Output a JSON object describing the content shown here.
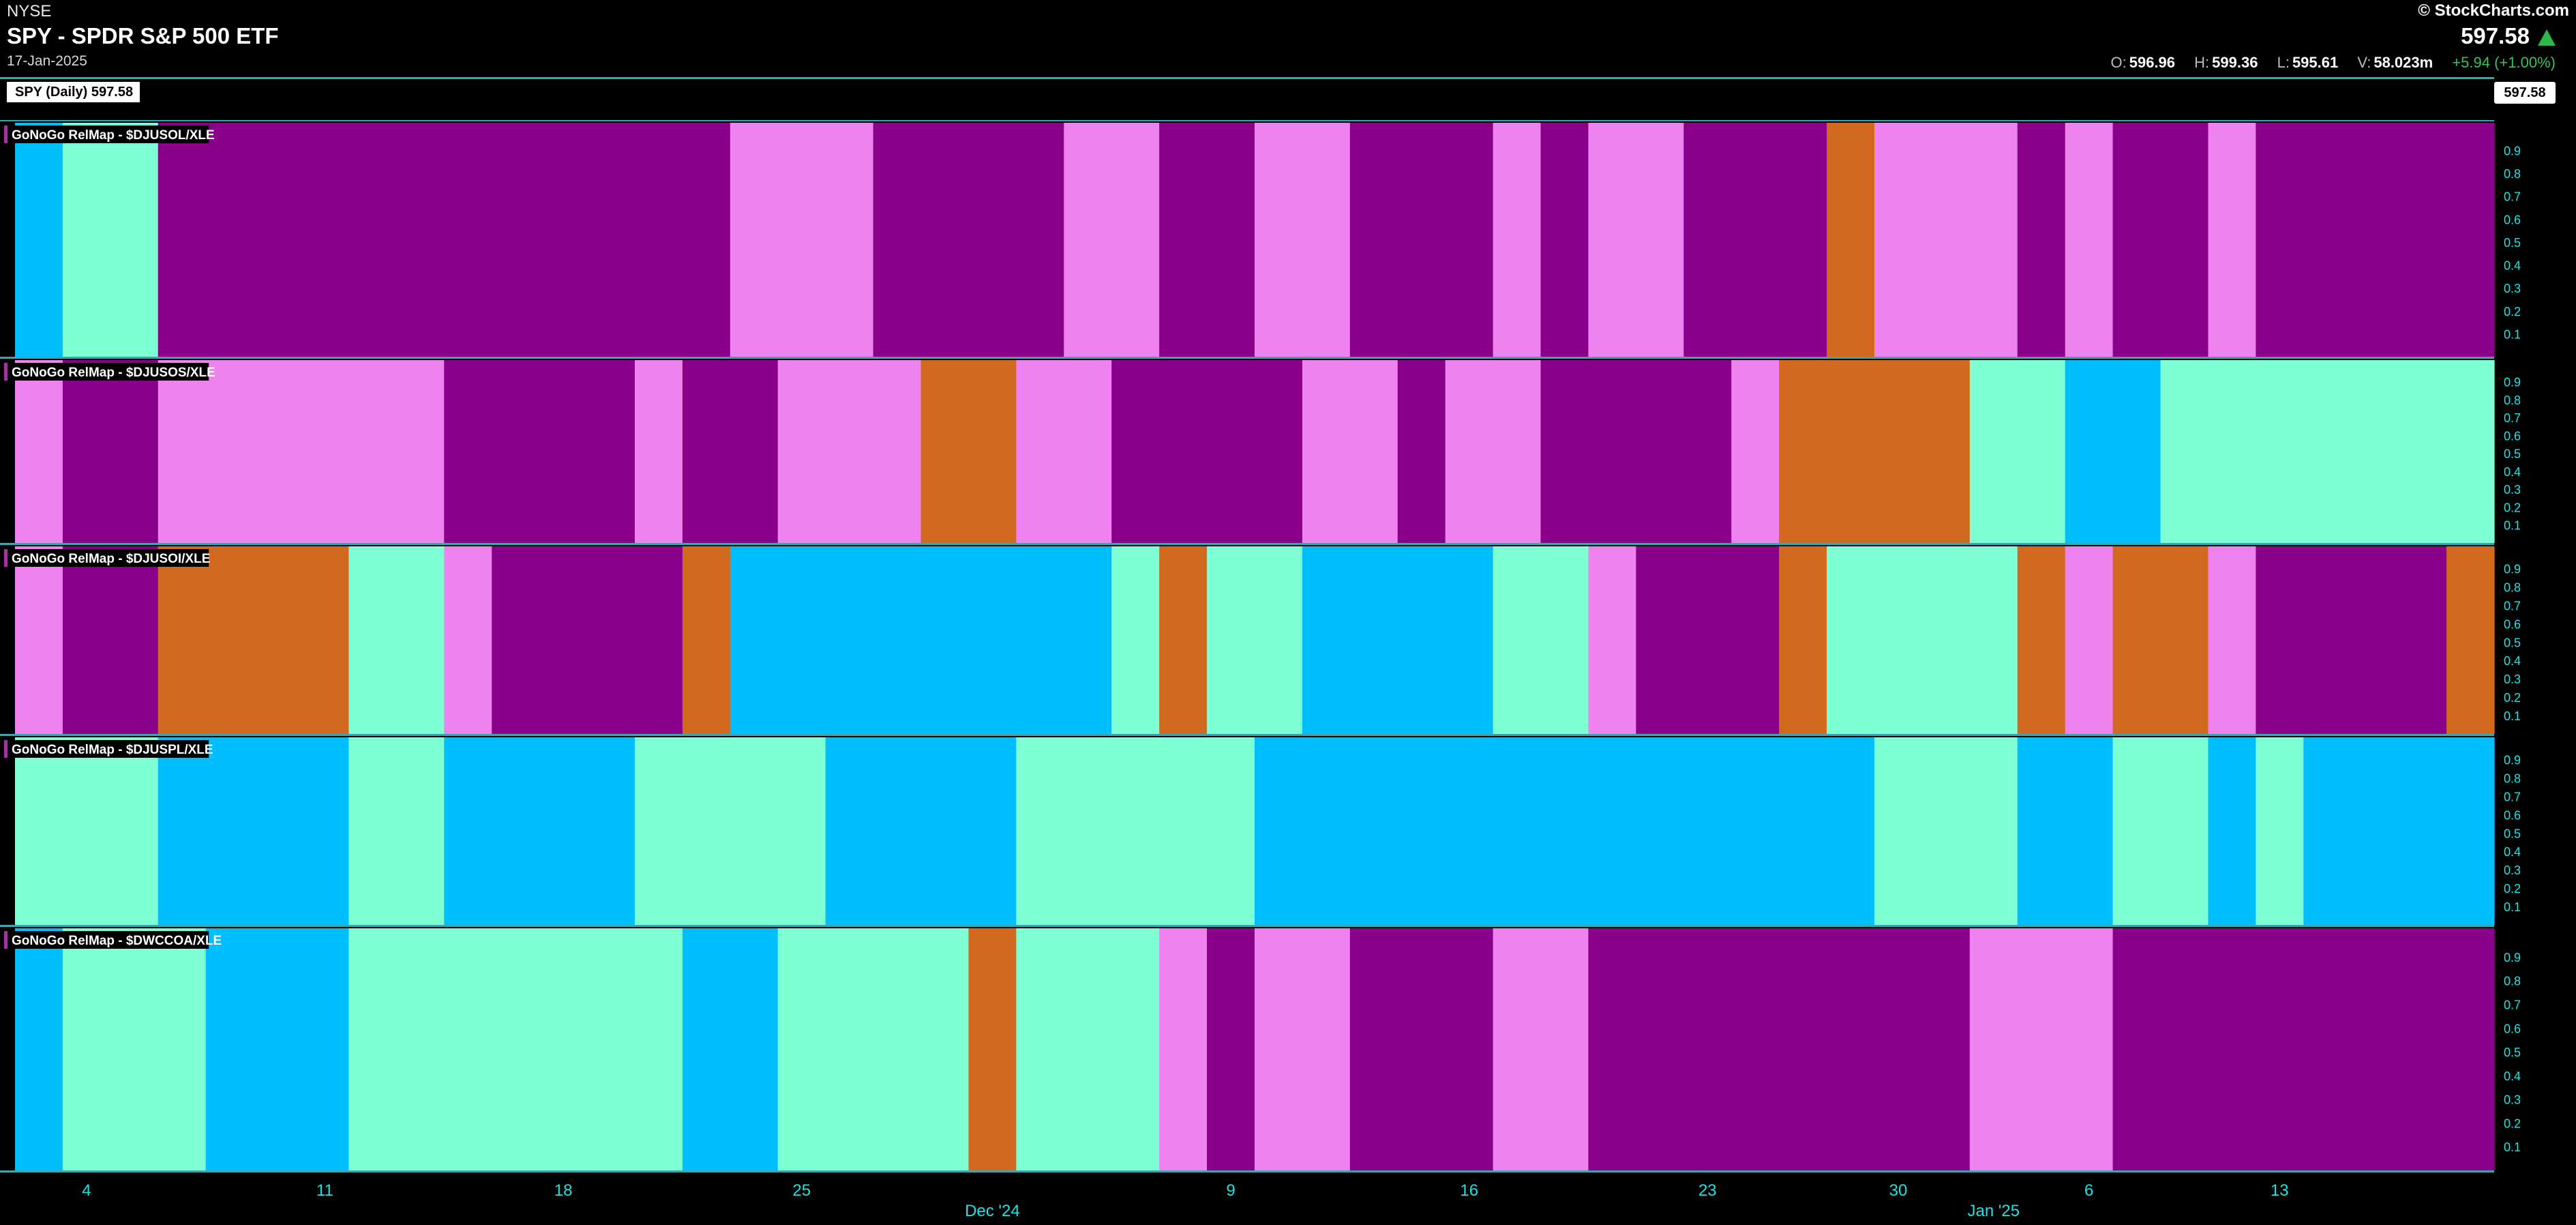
{
  "header": {
    "exchange": "NYSE",
    "symbol_title": "SPY - SPDR S&P 500 ETF",
    "date": "17-Jan-2025",
    "brand": "© StockCharts.com",
    "last_price": "597.58",
    "ohlc": {
      "open_label": "O:",
      "open": "596.96",
      "high_label": "H:",
      "high": "599.36",
      "low_label": "L:",
      "low": "595.61",
      "volume_label": "V:",
      "volume": "58.023m",
      "change": "+5.94 (+1.00%)"
    },
    "spy_label": "SPY (Daily) 597.58",
    "spy_price_tag": "597.58"
  },
  "colors": {
    "strong_go": "#00bfff",
    "go": "#7fffd4",
    "nogo": "#ee82ee",
    "strong_nogo": "#8b008b",
    "neutral": "#d2691e",
    "tick": "#15e6e6",
    "divider": "#3aa7b0"
  },
  "chart_data": {
    "type": "heatmap",
    "x_dates": [
      "2024-11-01",
      "2024-11-04",
      "2024-11-05",
      "2024-11-06",
      "2024-11-07",
      "2024-11-08",
      "2024-11-11",
      "2024-11-12",
      "2024-11-13",
      "2024-11-14",
      "2024-11-15",
      "2024-11-18",
      "2024-11-19",
      "2024-11-20",
      "2024-11-21",
      "2024-11-22",
      "2024-11-25",
      "2024-11-26",
      "2024-11-27",
      "2024-11-29",
      "2024-12-02",
      "2024-12-03",
      "2024-12-04",
      "2024-12-05",
      "2024-12-06",
      "2024-12-09",
      "2024-12-10",
      "2024-12-11",
      "2024-12-12",
      "2024-12-13",
      "2024-12-16",
      "2024-12-17",
      "2024-12-18",
      "2024-12-19",
      "2024-12-20",
      "2024-12-23",
      "2024-12-24",
      "2024-12-26",
      "2024-12-27",
      "2024-12-30",
      "2024-12-31",
      "2025-01-02",
      "2025-01-03",
      "2025-01-06",
      "2025-01-07",
      "2025-01-08",
      "2025-01-10",
      "2025-01-13",
      "2025-01-14",
      "2025-01-15",
      "2025-01-16",
      "2025-01-17"
    ],
    "x_ticks": [
      {
        "date": "2024-11-04",
        "label": "4"
      },
      {
        "date": "2024-11-11",
        "label": "11"
      },
      {
        "date": "2024-11-18",
        "label": "18"
      },
      {
        "date": "2024-11-25",
        "label": "25"
      },
      {
        "date": "2024-12-09",
        "label": "9"
      },
      {
        "date": "2024-12-16",
        "label": "16"
      },
      {
        "date": "2024-12-23",
        "label": "23"
      },
      {
        "date": "2024-12-30",
        "label": "30"
      },
      {
        "date": "2025-01-06",
        "label": "6"
      },
      {
        "date": "2025-01-13",
        "label": "13"
      }
    ],
    "month_labels": [
      {
        "date": "2024-12-02",
        "label": "Dec '24"
      },
      {
        "date": "2025-01-02",
        "label": "Jan '25"
      }
    ],
    "y_ticks": [
      "0.9",
      "0.8",
      "0.7",
      "0.6",
      "0.5",
      "0.4",
      "0.3",
      "0.2",
      "0.1"
    ],
    "ylim": [
      0,
      1
    ],
    "legend_codes": {
      "SG": "strong_go",
      "G": "go",
      "N": "nogo",
      "SN": "strong_nogo",
      "X": "neutral"
    },
    "panels": [
      {
        "label": "GoNoGo RelMap - $DJUSOL/XLE",
        "segments": [
          {
            "from": "2024-11-01",
            "to": "2024-11-01",
            "state": "SG"
          },
          {
            "from": "2024-11-04",
            "to": "2024-11-05",
            "state": "G"
          },
          {
            "from": "2024-11-06",
            "to": "2024-11-21",
            "state": "SN"
          },
          {
            "from": "2024-11-22",
            "to": "2024-11-26",
            "state": "N"
          },
          {
            "from": "2024-11-27",
            "to": "2024-12-03",
            "state": "SN"
          },
          {
            "from": "2024-12-04",
            "to": "2024-12-05",
            "state": "N"
          },
          {
            "from": "2024-12-06",
            "to": "2024-12-09",
            "state": "SN"
          },
          {
            "from": "2024-12-10",
            "to": "2024-12-11",
            "state": "N"
          },
          {
            "from": "2024-12-12",
            "to": "2024-12-16",
            "state": "SN"
          },
          {
            "from": "2024-12-17",
            "to": "2024-12-17",
            "state": "N"
          },
          {
            "from": "2024-12-18",
            "to": "2024-12-18",
            "state": "SN"
          },
          {
            "from": "2024-12-19",
            "to": "2024-12-20",
            "state": "N"
          },
          {
            "from": "2024-12-23",
            "to": "2024-12-26",
            "state": "SN"
          },
          {
            "from": "2024-12-27",
            "to": "2024-12-27",
            "state": "X"
          },
          {
            "from": "2024-12-30",
            "to": "2025-01-02",
            "state": "N"
          },
          {
            "from": "2025-01-03",
            "to": "2025-01-03",
            "state": "SN"
          },
          {
            "from": "2025-01-06",
            "to": "2025-01-06",
            "state": "N"
          },
          {
            "from": "2025-01-07",
            "to": "2025-01-08",
            "state": "SN"
          },
          {
            "from": "2025-01-10",
            "to": "2025-01-10",
            "state": "N"
          },
          {
            "from": "2025-01-13",
            "to": "2025-01-17",
            "state": "SN"
          }
        ]
      },
      {
        "label": "GoNoGo RelMap - $DJUSOS/XLE",
        "segments": [
          {
            "from": "2024-11-01",
            "to": "2024-11-01",
            "state": "N"
          },
          {
            "from": "2024-11-04",
            "to": "2024-11-05",
            "state": "SN"
          },
          {
            "from": "2024-11-06",
            "to": "2024-11-13",
            "state": "N"
          },
          {
            "from": "2024-11-14",
            "to": "2024-11-19",
            "state": "SN"
          },
          {
            "from": "2024-11-20",
            "to": "2024-11-20",
            "state": "N"
          },
          {
            "from": "2024-11-21",
            "to": "2024-11-22",
            "state": "SN"
          },
          {
            "from": "2024-11-25",
            "to": "2024-11-27",
            "state": "N"
          },
          {
            "from": "2024-11-29",
            "to": "2024-12-02",
            "state": "X"
          },
          {
            "from": "2024-12-03",
            "to": "2024-12-04",
            "state": "N"
          },
          {
            "from": "2024-12-05",
            "to": "2024-12-10",
            "state": "SN"
          },
          {
            "from": "2024-12-11",
            "to": "2024-12-12",
            "state": "N"
          },
          {
            "from": "2024-12-13",
            "to": "2024-12-13",
            "state": "SN"
          },
          {
            "from": "2024-12-16",
            "to": "2024-12-17",
            "state": "N"
          },
          {
            "from": "2024-12-18",
            "to": "2024-12-23",
            "state": "SN"
          },
          {
            "from": "2024-12-24",
            "to": "2024-12-24",
            "state": "N"
          },
          {
            "from": "2024-12-26",
            "to": "2024-12-31",
            "state": "X"
          },
          {
            "from": "2025-01-02",
            "to": "2025-01-03",
            "state": "G"
          },
          {
            "from": "2025-01-06",
            "to": "2025-01-07",
            "state": "SG"
          },
          {
            "from": "2025-01-08",
            "to": "2025-01-17",
            "state": "G"
          }
        ]
      },
      {
        "label": "GoNoGo RelMap - $DJUSOI/XLE",
        "segments": [
          {
            "from": "2024-11-01",
            "to": "2024-11-01",
            "state": "N"
          },
          {
            "from": "2024-11-04",
            "to": "2024-11-05",
            "state": "SN"
          },
          {
            "from": "2024-11-06",
            "to": "2024-11-11",
            "state": "X"
          },
          {
            "from": "2024-11-12",
            "to": "2024-11-13",
            "state": "G"
          },
          {
            "from": "2024-11-14",
            "to": "2024-11-14",
            "state": "N"
          },
          {
            "from": "2024-11-15",
            "to": "2024-11-20",
            "state": "SN"
          },
          {
            "from": "2024-11-21",
            "to": "2024-11-21",
            "state": "X"
          },
          {
            "from": "2024-11-22",
            "to": "2024-12-04",
            "state": "SG"
          },
          {
            "from": "2024-12-05",
            "to": "2024-12-05",
            "state": "G"
          },
          {
            "from": "2024-12-06",
            "to": "2024-12-06",
            "state": "X"
          },
          {
            "from": "2024-12-09",
            "to": "2024-12-10",
            "state": "G"
          },
          {
            "from": "2024-12-11",
            "to": "2024-12-16",
            "state": "SG"
          },
          {
            "from": "2024-12-17",
            "to": "2024-12-18",
            "state": "G"
          },
          {
            "from": "2024-12-19",
            "to": "2024-12-19",
            "state": "N"
          },
          {
            "from": "2024-12-20",
            "to": "2024-12-24",
            "state": "SN"
          },
          {
            "from": "2024-12-26",
            "to": "2024-12-26",
            "state": "X"
          },
          {
            "from": "2024-12-27",
            "to": "2025-01-02",
            "state": "G"
          },
          {
            "from": "2025-01-03",
            "to": "2025-01-03",
            "state": "X"
          },
          {
            "from": "2025-01-06",
            "to": "2025-01-06",
            "state": "N"
          },
          {
            "from": "2025-01-07",
            "to": "2025-01-08",
            "state": "X"
          },
          {
            "from": "2025-01-10",
            "to": "2025-01-10",
            "state": "N"
          },
          {
            "from": "2025-01-13",
            "to": "2025-01-16",
            "state": "SN"
          },
          {
            "from": "2025-01-17",
            "to": "2025-01-17",
            "state": "X"
          }
        ]
      },
      {
        "label": "GoNoGo RelMap - $DJUSPL/XLE",
        "segments": [
          {
            "from": "2024-11-01",
            "to": "2024-11-05",
            "state": "G"
          },
          {
            "from": "2024-11-06",
            "to": "2024-11-11",
            "state": "SG"
          },
          {
            "from": "2024-11-12",
            "to": "2024-11-13",
            "state": "G"
          },
          {
            "from": "2024-11-14",
            "to": "2024-11-19",
            "state": "SG"
          },
          {
            "from": "2024-11-20",
            "to": "2024-11-25",
            "state": "G"
          },
          {
            "from": "2024-11-26",
            "to": "2024-12-02",
            "state": "SG"
          },
          {
            "from": "2024-12-03",
            "to": "2024-12-09",
            "state": "G"
          },
          {
            "from": "2024-12-10",
            "to": "2024-12-27",
            "state": "SG"
          },
          {
            "from": "2024-12-30",
            "to": "2025-01-02",
            "state": "G"
          },
          {
            "from": "2025-01-03",
            "to": "2025-01-06",
            "state": "SG"
          },
          {
            "from": "2025-01-07",
            "to": "2025-01-08",
            "state": "G"
          },
          {
            "from": "2025-01-10",
            "to": "2025-01-10",
            "state": "SG"
          },
          {
            "from": "2025-01-13",
            "to": "2025-01-13",
            "state": "G"
          },
          {
            "from": "2025-01-14",
            "to": "2025-01-17",
            "state": "SG"
          }
        ]
      },
      {
        "label": "GoNoGo RelMap - $DWCCOA/XLE",
        "segments": [
          {
            "from": "2024-11-01",
            "to": "2024-11-01",
            "state": "SG"
          },
          {
            "from": "2024-11-04",
            "to": "2024-11-06",
            "state": "G"
          },
          {
            "from": "2024-11-07",
            "to": "2024-11-11",
            "state": "SG"
          },
          {
            "from": "2024-11-12",
            "to": "2024-11-20",
            "state": "G"
          },
          {
            "from": "2024-11-21",
            "to": "2024-11-22",
            "state": "SG"
          },
          {
            "from": "2024-11-25",
            "to": "2024-11-29",
            "state": "G"
          },
          {
            "from": "2024-12-02",
            "to": "2024-12-02",
            "state": "X"
          },
          {
            "from": "2024-12-03",
            "to": "2024-12-05",
            "state": "G"
          },
          {
            "from": "2024-12-06",
            "to": "2024-12-06",
            "state": "N"
          },
          {
            "from": "2024-12-09",
            "to": "2024-12-09",
            "state": "SN"
          },
          {
            "from": "2024-12-10",
            "to": "2024-12-11",
            "state": "N"
          },
          {
            "from": "2024-12-12",
            "to": "2024-12-16",
            "state": "SN"
          },
          {
            "from": "2024-12-17",
            "to": "2024-12-18",
            "state": "N"
          },
          {
            "from": "2024-12-19",
            "to": "2024-12-31",
            "state": "SN"
          },
          {
            "from": "2025-01-02",
            "to": "2025-01-06",
            "state": "N"
          },
          {
            "from": "2025-01-07",
            "to": "2025-01-17",
            "state": "SN"
          }
        ]
      }
    ]
  }
}
